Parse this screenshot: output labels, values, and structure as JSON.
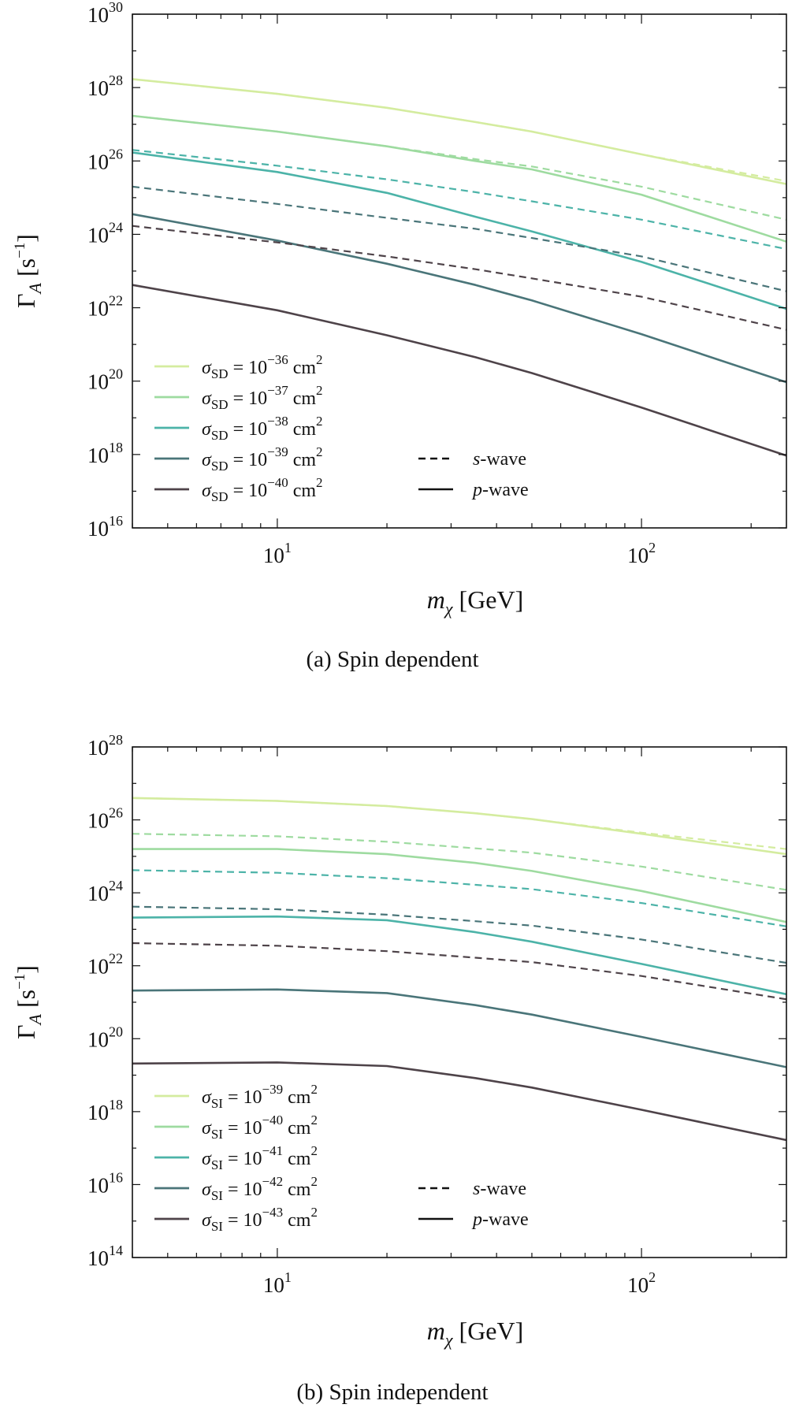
{
  "figure_colors": [
    "#d4ec9f",
    "#9edba0",
    "#4cb3a8",
    "#4a7579",
    "#4e4349"
  ],
  "chart_data": [
    {
      "type": "line",
      "id": "a",
      "caption": "(a) Spin dependent",
      "xlabel_main": "m",
      "xlabel_sub": "χ",
      "xlabel_unit": "[GeV]",
      "ylabel_main": "Γ",
      "ylabel_sub": "A",
      "ylabel_unit_open": "[s",
      "ylabel_unit_exp": "−1",
      "ylabel_unit_close": "]",
      "xscale": "log",
      "yscale": "log",
      "xlim": [
        4,
        250
      ],
      "ylim_exp": [
        16,
        30
      ],
      "xticks": [
        {
          "base": "10",
          "exp": "1",
          "value": 10
        },
        {
          "base": "10",
          "exp": "2",
          "value": 100
        }
      ],
      "yticks": [
        {
          "base": "10",
          "exp": "16",
          "value": 16
        },
        {
          "base": "10",
          "exp": "18",
          "value": 18
        },
        {
          "base": "10",
          "exp": "20",
          "value": 20
        },
        {
          "base": "10",
          "exp": "22",
          "value": 22
        },
        {
          "base": "10",
          "exp": "24",
          "value": 24
        },
        {
          "base": "10",
          "exp": "26",
          "value": 26
        },
        {
          "base": "10",
          "exp": "28",
          "value": 28
        },
        {
          "base": "10",
          "exp": "30",
          "value": 30
        }
      ],
      "x": [
        4,
        10,
        20,
        35,
        50,
        100,
        250
      ],
      "series": [
        {
          "name": "σSD = 10−36 cm2",
          "sym": "σ",
          "sub": "SD",
          "exp": "−36",
          "color": "#d4ec9f",
          "p_wave_log10": [
            28.23,
            27.83,
            27.45,
            27.06,
            26.8,
            26.18,
            25.37
          ],
          "s_wave_log10": [
            28.23,
            27.83,
            27.45,
            27.06,
            26.8,
            26.18,
            25.45
          ]
        },
        {
          "name": "σSD = 10−37 cm2",
          "sym": "σ",
          "sub": "SD",
          "exp": "−37",
          "color": "#9edba0",
          "p_wave_log10": [
            27.23,
            26.8,
            26.4,
            26.0,
            25.77,
            25.08,
            23.8
          ],
          "s_wave_log10": [
            27.23,
            26.8,
            26.4,
            26.05,
            25.85,
            25.3,
            24.4
          ]
        },
        {
          "name": "σSD = 10−38 cm2",
          "sym": "σ",
          "sub": "SD",
          "exp": "−38",
          "color": "#4cb3a8",
          "p_wave_log10": [
            26.23,
            25.7,
            25.13,
            24.48,
            24.08,
            23.25,
            21.97
          ],
          "s_wave_log10": [
            26.3,
            25.87,
            25.5,
            25.15,
            24.9,
            24.4,
            23.6
          ]
        },
        {
          "name": "σSD = 10−39 cm2",
          "sym": "σ",
          "sub": "SD",
          "exp": "−39",
          "color": "#4a7579",
          "p_wave_log10": [
            24.55,
            23.83,
            23.2,
            22.62,
            22.2,
            21.28,
            19.97
          ],
          "s_wave_log10": [
            25.3,
            24.83,
            24.45,
            24.15,
            23.9,
            23.4,
            22.45
          ]
        },
        {
          "name": "σSD = 10−40 cm2",
          "sym": "σ",
          "sub": "SD",
          "exp": "−40",
          "color": "#4e4349",
          "p_wave_log10": [
            22.62,
            21.93,
            21.25,
            20.65,
            20.22,
            19.28,
            17.97
          ],
          "s_wave_log10": [
            24.23,
            23.78,
            23.4,
            23.05,
            22.8,
            22.3,
            21.4
          ]
        }
      ],
      "style_legend": [
        {
          "label_italic": "s",
          "label_rest": "-wave",
          "dash": true
        },
        {
          "label_italic": "p",
          "label_rest": "-wave",
          "dash": false
        }
      ]
    },
    {
      "type": "line",
      "id": "b",
      "caption": "(b) Spin independent",
      "xlabel_main": "m",
      "xlabel_sub": "χ",
      "xlabel_unit": "[GeV]",
      "ylabel_main": "Γ",
      "ylabel_sub": "A",
      "ylabel_unit_open": "[s",
      "ylabel_unit_exp": "−1",
      "ylabel_unit_close": "]",
      "xscale": "log",
      "yscale": "log",
      "xlim": [
        4,
        250
      ],
      "ylim_exp": [
        14,
        28
      ],
      "xticks": [
        {
          "base": "10",
          "exp": "1",
          "value": 10
        },
        {
          "base": "10",
          "exp": "2",
          "value": 100
        }
      ],
      "yticks": [
        {
          "base": "10",
          "exp": "14",
          "value": 14
        },
        {
          "base": "10",
          "exp": "16",
          "value": 16
        },
        {
          "base": "10",
          "exp": "18",
          "value": 18
        },
        {
          "base": "10",
          "exp": "20",
          "value": 20
        },
        {
          "base": "10",
          "exp": "22",
          "value": 22
        },
        {
          "base": "10",
          "exp": "24",
          "value": 24
        },
        {
          "base": "10",
          "exp": "26",
          "value": 26
        },
        {
          "base": "10",
          "exp": "28",
          "value": 28
        }
      ],
      "x": [
        4,
        10,
        20,
        35,
        50,
        100,
        250
      ],
      "series": [
        {
          "name": "σSI = 10−39 cm2",
          "sym": "σ",
          "sub": "SI",
          "exp": "−39",
          "color": "#d4ec9f",
          "p_wave_log10": [
            26.6,
            26.52,
            26.38,
            26.18,
            26.02,
            25.62,
            25.06
          ],
          "s_wave_log10": [
            26.6,
            26.52,
            26.38,
            26.18,
            26.02,
            25.65,
            25.2
          ]
        },
        {
          "name": "σSI = 10−40 cm2",
          "sym": "σ",
          "sub": "SI",
          "exp": "−40",
          "color": "#9edba0",
          "p_wave_log10": [
            25.2,
            25.2,
            25.06,
            24.82,
            24.6,
            24.05,
            23.2
          ],
          "s_wave_log10": [
            25.62,
            25.55,
            25.4,
            25.22,
            25.1,
            24.72,
            24.08
          ]
        },
        {
          "name": "σSI = 10−41 cm2",
          "sym": "σ",
          "sub": "SI",
          "exp": "−41",
          "color": "#4cb3a8",
          "p_wave_log10": [
            23.32,
            23.35,
            23.25,
            22.92,
            22.66,
            22.05,
            21.22
          ],
          "s_wave_log10": [
            24.62,
            24.55,
            24.4,
            24.22,
            24.1,
            23.72,
            23.08
          ]
        },
        {
          "name": "σSI = 10−42 cm2",
          "sym": "σ",
          "sub": "SI",
          "exp": "−42",
          "color": "#4a7579",
          "p_wave_log10": [
            21.32,
            21.35,
            21.25,
            20.92,
            20.66,
            20.05,
            19.22
          ],
          "s_wave_log10": [
            23.62,
            23.55,
            23.4,
            23.22,
            23.1,
            22.72,
            22.08
          ]
        },
        {
          "name": "σSI = 10−43 cm2",
          "sym": "σ",
          "sub": "SI",
          "exp": "−43",
          "color": "#4e4349",
          "p_wave_log10": [
            19.32,
            19.35,
            19.25,
            18.92,
            18.66,
            18.05,
            17.22
          ],
          "s_wave_log10": [
            22.62,
            22.55,
            22.4,
            22.22,
            22.1,
            21.72,
            21.08
          ]
        }
      ],
      "style_legend": [
        {
          "label_italic": "s",
          "label_rest": "-wave",
          "dash": true
        },
        {
          "label_italic": "p",
          "label_rest": "-wave",
          "dash": false
        }
      ]
    }
  ]
}
